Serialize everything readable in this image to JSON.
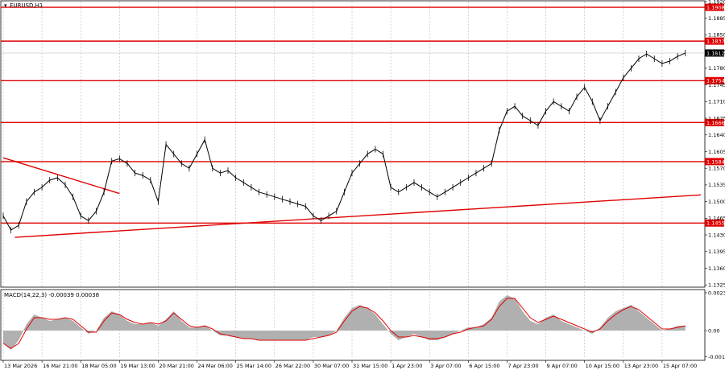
{
  "chart_data": [
    {
      "type": "line",
      "title": "EURUSD,H1",
      "price_axis": {
        "ticks": [
          1.192,
          1.1885,
          1.185,
          1.1815,
          1.178,
          1.1745,
          1.171,
          1.1675,
          1.164,
          1.1605,
          1.157,
          1.1535,
          1.15,
          1.1465,
          1.143,
          1.1395,
          1.136,
          1.1325
        ],
        "tick_labels": [
          "1.1920",
          "1.1885",
          "1.1850",
          "1.1815",
          "1.1780",
          "1.1745",
          "1.1710",
          "1.1675",
          "1.1640",
          "1.1605",
          "1.1570",
          "1.1535",
          "1.1500",
          "1.1465",
          "1.1430",
          "1.1395",
          "1.1360",
          "1.1325"
        ],
        "ylim": [
          1.1322,
          1.192
        ]
      },
      "current_price": {
        "value": 1.1812,
        "label": "1.1812"
      },
      "horizontal_levels": [
        {
          "value": 1.1908,
          "label": "1.1908"
        },
        {
          "value": 1.1837,
          "label": "1.1837"
        },
        {
          "value": 1.1754,
          "label": "1.1754"
        },
        {
          "value": 1.1666,
          "label": "1.1666"
        },
        {
          "value": 1.1584,
          "label": "1.1584"
        },
        {
          "value": 1.1455,
          "label": "1.1455"
        }
      ],
      "trend_lines": [
        {
          "from": [
            0,
            1.1592
          ],
          "to": [
            30,
            1.1517
          ]
        },
        {
          "from": [
            3,
            1.1425
          ],
          "to": [
            180,
            1.1514
          ]
        }
      ],
      "time_axis": {
        "labels": [
          "13 Mar 2026",
          "16 Mar 21:00",
          "18 Mar 05:00",
          "19 Mar 13:00",
          "20 Mar 21:00",
          "24 Mar 06:00",
          "25 Mar 14:00",
          "26 Mar 22:00",
          "30 Mar 07:00",
          "31 Mar 15:00",
          "1 Apr 23:00",
          "3 Apr 07:00",
          "6 Apr 15:00",
          "7 Apr 23:00",
          "9 Apr 07:00",
          "10 Apr 15:00",
          "13 Apr 23:00",
          "15 Apr 07:00"
        ],
        "positions": [
          0,
          10,
          20,
          30,
          40,
          50,
          60,
          70,
          80,
          90,
          100,
          110,
          120,
          130,
          140,
          150,
          160,
          170
        ],
        "xlim": [
          0,
          180
        ]
      },
      "series": [
        {
          "x": [
            0,
            2,
            4,
            6,
            8,
            10,
            12,
            14,
            16,
            18,
            20,
            22,
            24,
            26,
            28,
            30,
            32,
            34,
            36,
            38,
            40,
            42,
            44,
            46,
            48,
            50,
            52,
            54,
            56,
            58,
            60,
            62,
            64,
            66,
            68,
            70,
            72,
            74,
            76,
            78,
            80,
            82,
            84,
            86,
            88,
            90,
            92,
            94,
            96,
            98,
            100,
            102,
            104,
            106,
            108,
            110,
            112,
            114,
            116,
            118,
            120,
            122,
            124,
            126,
            128,
            130,
            132,
            134,
            136,
            138,
            140,
            142,
            144,
            146,
            148,
            150,
            152,
            154,
            156,
            158,
            160,
            162,
            164,
            166,
            168,
            170,
            172,
            174,
            176
          ],
          "values": [
            1.147,
            1.144,
            1.145,
            1.15,
            1.152,
            1.153,
            1.1545,
            1.155,
            1.1535,
            1.151,
            1.147,
            1.146,
            1.148,
            1.152,
            1.1585,
            1.159,
            1.158,
            1.156,
            1.1555,
            1.1545,
            1.15,
            1.162,
            1.16,
            1.158,
            1.157,
            1.16,
            1.163,
            1.157,
            1.156,
            1.1565,
            1.155,
            1.154,
            1.153,
            1.152,
            1.1515,
            1.151,
            1.1505,
            1.15,
            1.1495,
            1.149,
            1.147,
            1.146,
            1.147,
            1.148,
            1.152,
            1.156,
            1.158,
            1.16,
            1.161,
            1.16,
            1.153,
            1.152,
            1.153,
            1.154,
            1.153,
            1.152,
            1.151,
            1.152,
            1.153,
            1.154,
            1.155,
            1.156,
            1.157,
            1.158,
            1.165,
            1.169,
            1.17,
            1.168,
            1.167,
            1.166,
            1.169,
            1.171,
            1.17,
            1.169,
            1.172,
            1.174,
            1.171,
            1.167,
            1.17,
            1.173,
            1.176,
            1.178,
            1.18,
            1.181,
            1.18,
            1.179,
            1.1795,
            1.1805,
            1.1812
          ]
        }
      ]
    },
    {
      "type": "area",
      "title": "MACD(14,22,3) -0.00039 0.00038",
      "y_axis": {
        "ticks": [
          0.00235,
          0.0,
          -0.00163
        ],
        "tick_labels": [
          "0.00235",
          "0.00",
          "-0.00163"
        ],
        "ylim": [
          -0.00175,
          0.00245
        ]
      },
      "series": [
        {
          "name": "histogram",
          "x": [
            0,
            2,
            4,
            6,
            8,
            10,
            12,
            14,
            16,
            18,
            20,
            22,
            24,
            26,
            28,
            30,
            32,
            34,
            36,
            38,
            40,
            42,
            44,
            46,
            48,
            50,
            52,
            54,
            56,
            58,
            60,
            62,
            64,
            66,
            68,
            70,
            72,
            74,
            76,
            78,
            80,
            82,
            84,
            86,
            88,
            90,
            92,
            94,
            96,
            98,
            100,
            102,
            104,
            106,
            108,
            110,
            112,
            114,
            116,
            118,
            120,
            122,
            124,
            126,
            128,
            130,
            132,
            134,
            136,
            138,
            140,
            142,
            144,
            146,
            148,
            150,
            152,
            154,
            156,
            158,
            160,
            162,
            164,
            166,
            168,
            170,
            172,
            174,
            176
          ],
          "values": [
            -0.0008,
            -0.0012,
            -0.0006,
            0.0004,
            0.001,
            0.0008,
            0.0006,
            0.0007,
            0.0008,
            0.0006,
            0.0002,
            -0.0002,
            0.0,
            0.0008,
            0.0012,
            0.001,
            0.0006,
            0.0004,
            0.0004,
            0.0005,
            0.0003,
            0.0007,
            0.0012,
            0.0006,
            0.0002,
            0.0002,
            0.0003,
            0.0,
            -0.0003,
            -0.0003,
            -0.0004,
            -0.0005,
            -0.0005,
            -0.0006,
            -0.0006,
            -0.0006,
            -0.0006,
            -0.0006,
            -0.0006,
            -0.0006,
            -0.0004,
            -0.0004,
            -0.0003,
            0.0,
            0.0008,
            0.0014,
            0.0016,
            0.0014,
            0.001,
            0.0004,
            -0.0002,
            -0.0006,
            -0.0004,
            -0.0002,
            -0.0004,
            -0.0006,
            -0.0006,
            -0.0004,
            -0.0002,
            0.0,
            0.0002,
            0.0002,
            0.0004,
            0.0008,
            0.0018,
            0.0022,
            0.002,
            0.0012,
            0.0006,
            0.0004,
            0.0008,
            0.001,
            0.0006,
            0.0004,
            0.0002,
            0.0,
            -0.0002,
            0.0002,
            0.0008,
            0.0012,
            0.0014,
            0.0016,
            0.0012,
            0.0008,
            0.0004,
            0.0,
            0.0001,
            0.0003,
            0.0003
          ]
        },
        {
          "name": "signal",
          "x": [
            0,
            2,
            4,
            6,
            8,
            10,
            12,
            14,
            16,
            18,
            20,
            22,
            24,
            26,
            28,
            30,
            32,
            34,
            36,
            38,
            40,
            42,
            44,
            46,
            48,
            50,
            52,
            54,
            56,
            58,
            60,
            62,
            64,
            66,
            68,
            70,
            72,
            74,
            76,
            78,
            80,
            82,
            84,
            86,
            88,
            90,
            92,
            94,
            96,
            98,
            100,
            102,
            104,
            106,
            108,
            110,
            112,
            114,
            116,
            118,
            120,
            122,
            124,
            126,
            128,
            130,
            132,
            134,
            136,
            138,
            140,
            142,
            144,
            146,
            148,
            150,
            152,
            154,
            156,
            158,
            160,
            162,
            164,
            166,
            168,
            170,
            172,
            174,
            176
          ],
          "values": [
            -0.0008,
            -0.0011,
            -0.0008,
            0.0001,
            0.0008,
            0.0008,
            0.0007,
            0.0007,
            0.0008,
            0.0007,
            0.0003,
            -0.0001,
            -0.0001,
            0.0006,
            0.0011,
            0.001,
            0.0007,
            0.0005,
            0.0004,
            0.0005,
            0.0004,
            0.0006,
            0.0011,
            0.0007,
            0.0003,
            0.0002,
            0.0003,
            0.0001,
            -0.0002,
            -0.0003,
            -0.0004,
            -0.0005,
            -0.0005,
            -0.0006,
            -0.0006,
            -0.0006,
            -0.0006,
            -0.0006,
            -0.0006,
            -0.0006,
            -0.0005,
            -0.0004,
            -0.0003,
            -0.0001,
            0.0006,
            0.0012,
            0.0015,
            0.0014,
            0.0011,
            0.0006,
            0.0,
            -0.0004,
            -0.0004,
            -0.0003,
            -0.0004,
            -0.0005,
            -0.0005,
            -0.0004,
            -0.0002,
            -0.0001,
            0.0001,
            0.0002,
            0.0003,
            0.0007,
            0.0015,
            0.002,
            0.002,
            0.0014,
            0.0008,
            0.0005,
            0.0007,
            0.0009,
            0.0007,
            0.0005,
            0.0003,
            0.0001,
            -0.0001,
            0.0001,
            0.0006,
            0.001,
            0.0013,
            0.0015,
            0.0013,
            0.0009,
            0.0005,
            0.0001,
            0.0001,
            0.0002,
            0.0003
          ]
        }
      ]
    }
  ]
}
